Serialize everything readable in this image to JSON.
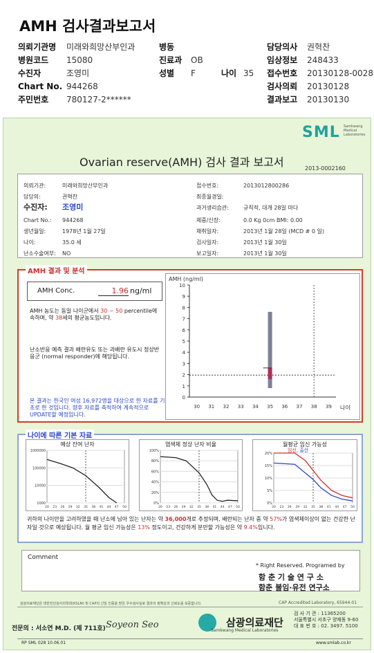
{
  "header": {
    "title": "AMH 검사결과보고서",
    "left": [
      {
        "k": "의뢰기관명",
        "v": "미래와희망산부인과"
      },
      {
        "k": "병원코드",
        "v": "15080"
      },
      {
        "k": "수진자",
        "v": "조영미"
      },
      {
        "k": "Chart No.",
        "v": "944268"
      },
      {
        "k": "주민번호",
        "v": "780127-2******"
      }
    ],
    "ward": {
      "k": "병동",
      "v": ""
    },
    "dept": {
      "k": "진료과",
      "v": "OB"
    },
    "sex": {
      "k": "성별",
      "v": "F"
    },
    "age": {
      "k": "나이",
      "v": "35"
    },
    "right": [
      {
        "k": "담당의사",
        "v": "권혁찬"
      },
      {
        "k": "임상정보",
        "v": "248433"
      },
      {
        "k": "접수번호",
        "v": "20130128-00286"
      },
      {
        "k": "검사의뢰",
        "v": "20130128"
      },
      {
        "k": "결과보고",
        "v": "20130130"
      }
    ]
  },
  "report": {
    "logo": "SML",
    "logo_sub": "Samkwang Medical Laboratories",
    "title": "Ovarian reserve(AMH) 검사 결과 보고서",
    "doc_no": "2013-0002160",
    "info_left": [
      {
        "k": "의뢰기관:",
        "v": "미래와희망산부인과"
      },
      {
        "k": "담당의:",
        "v": "권혁찬"
      },
      {
        "k": "수진자:",
        "v": "조영미"
      },
      {
        "k": "Chart No.:",
        "v": "944268"
      },
      {
        "k": "생년월일:",
        "v": "1978년 1월 27일"
      },
      {
        "k": "나이:",
        "v": "35.0 세"
      },
      {
        "k": "난소수술여부:",
        "v": "NO"
      }
    ],
    "info_right": [
      {
        "k": "접수번호:",
        "v": "2013012800286"
      },
      {
        "k": "최종월경일:",
        "v": ""
      },
      {
        "k": "과거생리습관:",
        "v": "규칙적, 대개  28일 마다"
      },
      {
        "k": "체중/신장:",
        "v": "0.0 Kg        0cm    BMI:    0.00"
      },
      {
        "k": "채취일자:",
        "v": "2013년 1월 28일   (MCD # 0 일)"
      },
      {
        "k": "검사일자:",
        "v": "2013년 1월 30일"
      },
      {
        "k": "보고일자:",
        "v": "2013년 1월 30일"
      }
    ],
    "amh_section": {
      "title": "AMH 결과 및 분석",
      "conc_label": "AMH Conc.",
      "conc_value": "1.96",
      "conc_unit": "ng/ml",
      "para1_a": "AMH 농도는 동일 나이군에서",
      "para1_range": "30 ~ 50",
      "para1_b": "percentile에 속하며, 약",
      "para1_age": "38",
      "para1_c": "세의 평균농도입니다.",
      "para2": "난소반응 예측 결과 배란유도 또는 과배란 유도시 정상반응군 (normal responder)에 해당됩니다.",
      "para3": "본 결과는 한국인 여성 16,972명을 대상으로 한 자료를 기초로 한 것입니다. 향후 자료를 축적하여 계속적으로 UPDATE할 예정입니다."
    },
    "age_section": {
      "title": "나이에 따른 기본 자료",
      "chart1_title": "예상 잔여 난자",
      "chart2_title": "염색체 정상 난자 비율",
      "chart3_title": "월평균 임신 가능성",
      "chart3_legend_a": "임신",
      "chart3_legend_b": "출산",
      "para_a": "귀하의 나이만을 고려하였을 때 난소에 남아 있는 난자는 약",
      "para_eggs": "36,000",
      "para_b": "개로 추정되며, 배란되는 난자 중 약",
      "para_pct": "57%",
      "para_c": "가 염색체이상이 없는 건강한 난자일 것으로 예상됩니다. 월 평균 임신 가능성은",
      "para_preg": "13%",
      "para_d": "정도이고, 건강하게 분만할 가능성은 약",
      "para_birth": "9.4%",
      "para_e": "입니다."
    },
    "comment_label": "Comment",
    "rights": "* Right Reserved. Programed by",
    "dept1": "함 춘  기 술  연 구 소",
    "dept2": "함춘 불임·유전 연구소",
    "footer_small": "삼광의료재단은 대한진단검사의학회(KSLM) 및 CAP의 신임 인증을 받은 우수검사실로 결과의 정확성과 신뢰도를 보증합니다.",
    "cap": "CAP Accredited Laboratory, 65944-01",
    "specialist": "전문의 : 서소연 M.D. (제 711호)",
    "signature": "Soyeon Seo",
    "foundation": "삼광의료재단",
    "foundation_sub": "Samkwang Medical Laboratories",
    "contact1": "검 사 기 관 : 11365200",
    "contact2": "서울특별시 서초구 양재동 9-60",
    "contact3": "대 표 번 호 : 02. 3497. 5100",
    "code": "RP  SML  028  10.06.01",
    "url": "www.smlab.co.kr"
  },
  "chart_data": [
    {
      "type": "bar",
      "title": "",
      "ylabel": "AMH (ng/ml)",
      "xlabel": "나이",
      "x_ticks": [
        30,
        31,
        32,
        33,
        34,
        35,
        36,
        37,
        38,
        39
      ],
      "y_ticks": [
        0,
        1,
        2,
        3,
        4,
        5,
        6,
        7,
        8,
        9,
        10
      ],
      "ylim": [
        0,
        10
      ],
      "range_bar": {
        "x": 35,
        "low": 0.8,
        "high": 7.6
      },
      "value_mark": {
        "x": 35,
        "low": 1.6,
        "high": 2.6
      },
      "reference_line": 1.96,
      "vline_x": 38
    },
    {
      "type": "line",
      "title": "예상 잔여 난자",
      "y_ticks": [
        "1000000",
        "100000",
        "10000",
        "1000"
      ],
      "x_ticks": [
        20,
        23,
        26,
        29,
        32,
        35,
        38,
        41,
        44,
        47,
        50
      ],
      "yscale": "log",
      "x": [
        20,
        25,
        30,
        35,
        40,
        44,
        47
      ],
      "y": [
        300000,
        180000,
        100000,
        36000,
        8000,
        2000,
        1000
      ],
      "vline_x": 35
    },
    {
      "type": "line",
      "title": "염색체 정상 난자 비율",
      "y_ticks": [
        "100%",
        "80%",
        "60%",
        "40%",
        "20%",
        "0%"
      ],
      "x_ticks": [
        20,
        23,
        26,
        29,
        32,
        35,
        38,
        41,
        44,
        47,
        50
      ],
      "x": [
        20,
        26,
        30,
        35,
        38,
        40,
        42,
        44,
        46,
        50
      ],
      "y": [
        88,
        86,
        80,
        57,
        35,
        15,
        5,
        3,
        5,
        4
      ],
      "vline_x": 35
    },
    {
      "type": "line",
      "title": "월평균 임신 가능성",
      "y_ticks": [
        "20%",
        "15%",
        "10%",
        "5%",
        "0%"
      ],
      "x_ticks": [
        20,
        23,
        26,
        29,
        32,
        35,
        38,
        41,
        44,
        47,
        50
      ],
      "series": [
        {
          "name": "임신",
          "x": [
            20,
            28,
            32,
            35,
            38,
            42,
            46,
            50
          ],
          "y": [
            20,
            20,
            17,
            13,
            9,
            5,
            3,
            2
          ],
          "color": "#c9302c"
        },
        {
          "name": "출산",
          "x": [
            20,
            28,
            32,
            35,
            38,
            42,
            46,
            50
          ],
          "y": [
            16,
            15.5,
            12,
            9.4,
            6,
            3,
            1.5,
            0.8
          ],
          "color": "#2b45c8"
        }
      ],
      "vline_x": 35
    }
  ]
}
